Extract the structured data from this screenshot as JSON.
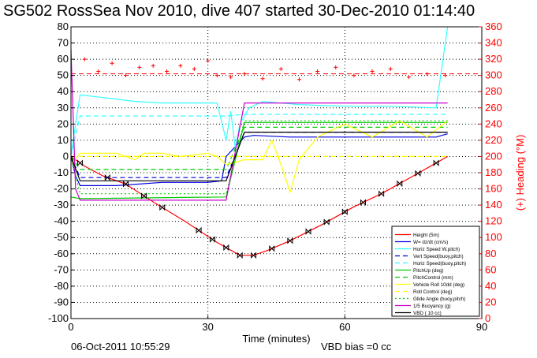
{
  "chart_data": {
    "type": "line",
    "title": "SG502 RossSea Nov 2010, dive 407 started 30-Dec-2010 01:14:40",
    "xlabel": "Time (minutes)",
    "ylabel_right": "(+) Heading (°M)",
    "xlim": [
      0,
      90
    ],
    "ylim": [
      -100,
      80
    ],
    "ylim_right": [
      0,
      360
    ],
    "x_ticks": [
      "0",
      "30",
      "60",
      "90"
    ],
    "y_ticks": [
      "80",
      "70",
      "60",
      "50",
      "40",
      "30",
      "20",
      "10",
      "0",
      "-10",
      "-20",
      "-30",
      "-40",
      "-50",
      "-60",
      "-70",
      "-80",
      "-90",
      "-100"
    ],
    "y_ticks_right": [
      "360",
      "340",
      "320",
      "300",
      "280",
      "260",
      "240",
      "220",
      "200",
      "180",
      "160",
      "140",
      "120",
      "100",
      "80",
      "60",
      "40",
      "20",
      "0"
    ],
    "grid": true,
    "legend_position": "bottom-right",
    "series": [
      {
        "name": "Height (5m)",
        "color": "#ff0000",
        "x": [
          0,
          3,
          7,
          12,
          18,
          25,
          32,
          37,
          40,
          43,
          48,
          55,
          62,
          68,
          75,
          80,
          82.5
        ],
        "y": [
          0,
          -6,
          -12,
          -17,
          -28,
          -40,
          -53,
          -61,
          -61,
          -58,
          -52,
          -42,
          -31,
          -23,
          -12,
          -4,
          0
        ]
      },
      {
        "name": "W= dz/dt (cm/s)",
        "color": "#0000dd",
        "x": [
          0,
          1,
          2,
          10,
          20,
          30,
          33,
          34,
          38,
          40,
          48,
          56,
          64,
          72,
          80,
          82.5
        ],
        "y": [
          0,
          -12,
          -18,
          -18,
          -16,
          -16,
          -15,
          0,
          12,
          13,
          12,
          12,
          12,
          12,
          12,
          14
        ]
      },
      {
        "name": "Horiz Speed W,pitch)",
        "color": "#33ffff",
        "x": [
          0,
          1,
          2,
          8,
          14,
          20,
          26,
          32,
          34,
          35,
          36,
          37,
          39,
          42,
          50,
          60,
          70,
          80,
          82.5
        ],
        "y": [
          0,
          20,
          38,
          36,
          34,
          33,
          33,
          33,
          10,
          28,
          5,
          20,
          30,
          34,
          32,
          31,
          31,
          30,
          80
        ]
      },
      {
        "name": "Vert Speed(buoy,pitch)",
        "color": "#0000dd",
        "dash": "6,4",
        "x": [
          0,
          2,
          34,
          38,
          82.5
        ],
        "y": [
          0,
          -13,
          -13,
          15,
          15
        ]
      },
      {
        "name": "Horiz Speed(buoy,pitch)",
        "color": "#33ffff",
        "dash": "6,4",
        "x": [
          0,
          2,
          34,
          38,
          82.5
        ],
        "y": [
          0,
          25,
          25,
          26,
          26
        ]
      },
      {
        "name": "PitchUp (deg)",
        "color": "#00cc00",
        "x": [
          0,
          2,
          34,
          38,
          82.5
        ],
        "y": [
          -25,
          -26,
          -25,
          21,
          21
        ]
      },
      {
        "name": "PitchControl (mm)",
        "color": "#00cc00",
        "dash": "6,4",
        "x": [
          0,
          2,
          34,
          38,
          82.5
        ],
        "y": [
          0,
          -8,
          -8,
          18,
          18
        ]
      },
      {
        "name": "Vehicle Roll 10dd (deg)",
        "color": "#ffff00",
        "x": [
          0,
          2,
          10,
          14,
          16,
          20,
          24,
          30,
          32,
          34,
          38,
          42,
          44,
          46,
          48,
          50,
          54,
          60,
          66,
          72,
          78,
          82.5
        ],
        "y": [
          -5,
          2,
          2,
          -2,
          2,
          2,
          0,
          2,
          0,
          -5,
          -2,
          -2,
          10,
          -5,
          -22,
          -2,
          12,
          20,
          12,
          22,
          12,
          22
        ]
      },
      {
        "name": "Roll Control (deg)",
        "color": "#ffff00",
        "dash": "6,4",
        "x": [
          0,
          2,
          82.5
        ],
        "y": [
          0,
          0,
          0
        ]
      },
      {
        "name": "Glide Angle (buoy,pitch)",
        "color": "#00cc00",
        "dash": "2,3",
        "x": [
          0,
          2,
          34,
          38,
          82.5
        ],
        "y": [
          0,
          -23,
          -23,
          22,
          22
        ]
      },
      {
        "name": "1/5 Buoyancy (g)",
        "color": "#cc00cc",
        "x": [
          0,
          1,
          2,
          34,
          38,
          82.5
        ],
        "y": [
          66,
          -20,
          -27,
          -27,
          33,
          33
        ]
      },
      {
        "name": "VBD ( 10 cc)",
        "color": "#000000",
        "x": [
          0,
          2,
          34,
          38,
          82.5
        ],
        "y": [
          0,
          -15,
          -15,
          15,
          15
        ]
      }
    ],
    "heading": {
      "color": "#ff0000",
      "reference_line": 302,
      "x": [
        3,
        6,
        9,
        12,
        15,
        18,
        21,
        24,
        27,
        30,
        32,
        35,
        38,
        42,
        46,
        50,
        54,
        58,
        62,
        66,
        70,
        74,
        78,
        82
      ],
      "y": [
        320,
        305,
        315,
        300,
        310,
        312,
        305,
        312,
        308,
        318,
        300,
        298,
        302,
        296,
        308,
        295,
        305,
        310,
        300,
        305,
        308,
        298,
        302,
        300
      ]
    },
    "markers_x": [
      2,
      8,
      12,
      16,
      20,
      28,
      31,
      34,
      37,
      40,
      44,
      48,
      52,
      56,
      60,
      64,
      68,
      72,
      76,
      80
    ]
  },
  "footer": {
    "date": "06-Oct-2011 10:55:29",
    "vbd_bias": "VBD bias =0 cc"
  }
}
